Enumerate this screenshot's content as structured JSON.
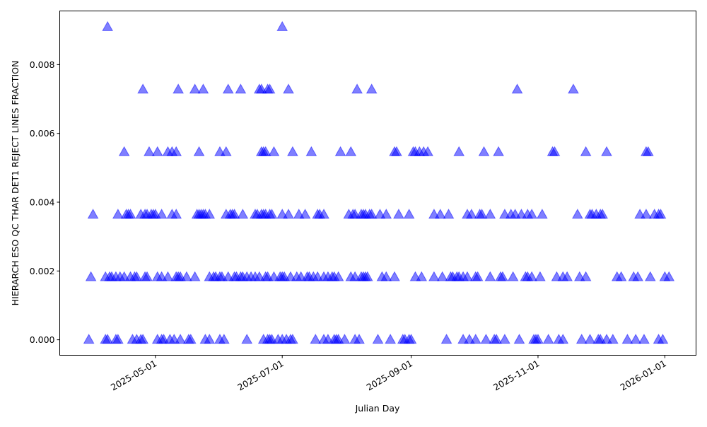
{
  "chart_data": {
    "type": "scatter",
    "title": "",
    "xlabel": "Julian Day",
    "ylabel": "HIERARCH ESO QC THAR DET1 REJECT LINES FRACTION",
    "x_unit": "days since 2025-05-01",
    "xlim": [
      -46,
      260
    ],
    "ylim": [
      -0.00045,
      0.00956
    ],
    "grid": false,
    "marker": "triangle-up",
    "color": "#0000ff",
    "alpha": 0.5,
    "x_ticks": [
      {
        "value": 0,
        "label": "2025-05-01"
      },
      {
        "value": 61,
        "label": "2025-07-01"
      },
      {
        "value": 123,
        "label": "2025-09-01"
      },
      {
        "value": 184,
        "label": "2025-11-01"
      },
      {
        "value": 245,
        "label": "2026-01-01"
      }
    ],
    "y_ticks": [
      {
        "value": 0.0,
        "label": "0.000"
      },
      {
        "value": 0.002,
        "label": "0.002"
      },
      {
        "value": 0.004,
        "label": "0.004"
      },
      {
        "value": 0.006,
        "label": "0.006"
      },
      {
        "value": 0.008,
        "label": "0.008"
      }
    ],
    "series": [
      {
        "y": 0.0,
        "x": [
          -32,
          -24,
          -23,
          -19,
          -18,
          -11,
          -9,
          -7,
          -6,
          1,
          3,
          4,
          7,
          9,
          12,
          16,
          17,
          24,
          26,
          31,
          33,
          44,
          52,
          54,
          55,
          56,
          59,
          61,
          63,
          65,
          66,
          77,
          81,
          83,
          86,
          87,
          88,
          91,
          96,
          98,
          107,
          113,
          119,
          120,
          122,
          123,
          140,
          148,
          151,
          154,
          159,
          163,
          164,
          168,
          175,
          182,
          183,
          184,
          189,
          194,
          196,
          205,
          209,
          213,
          214,
          217,
          220,
          227,
          231,
          235,
          242,
          244
        ]
      },
      {
        "y": 0.001818,
        "x": [
          -31,
          -24,
          -22,
          -21,
          -19,
          -17,
          -15,
          -12,
          -10,
          -9,
          -5,
          -4,
          1,
          3,
          6,
          10,
          11,
          12,
          15,
          19,
          26,
          28,
          29,
          31,
          32,
          35,
          38,
          39,
          41,
          42,
          44,
          46,
          48,
          50,
          53,
          54,
          57,
          60,
          61,
          62,
          65,
          68,
          70,
          73,
          74,
          76,
          78,
          81,
          83,
          85,
          86,
          88,
          94,
          96,
          99,
          100,
          101,
          102,
          109,
          111,
          115,
          125,
          128,
          134,
          138,
          142,
          143,
          145,
          146,
          148,
          150,
          154,
          155,
          161,
          166,
          167,
          172,
          178,
          179,
          181,
          185,
          193,
          196,
          198,
          204,
          207,
          222,
          224,
          230,
          232,
          238,
          245,
          247
        ]
      },
      {
        "y": 0.003636,
        "x": [
          -30,
          -18,
          -14,
          -13,
          -12,
          -7,
          -5,
          -4,
          -2,
          -1,
          0,
          3,
          8,
          10,
          20,
          21,
          22,
          23,
          24,
          26,
          34,
          36,
          37,
          38,
          42,
          48,
          49,
          51,
          52,
          53,
          55,
          56,
          61,
          64,
          69,
          72,
          78,
          79,
          81,
          93,
          95,
          96,
          99,
          100,
          101,
          103,
          104,
          108,
          111,
          117,
          122,
          134,
          137,
          141,
          150,
          152,
          156,
          157,
          161,
          168,
          171,
          173,
          176,
          179,
          181,
          186,
          203,
          209,
          210,
          212,
          214,
          215,
          233,
          236,
          240,
          242,
          243
        ]
      },
      {
        "y": 0.005455,
        "x": [
          -15,
          -3,
          1,
          6,
          8,
          10,
          21,
          31,
          34,
          51,
          52,
          53,
          57,
          66,
          75,
          89,
          94,
          115,
          116,
          124,
          125,
          127,
          129,
          131,
          146,
          158,
          165,
          191,
          192,
          207,
          217,
          236,
          237
        ]
      },
      {
        "y": 0.007273,
        "x": [
          -6,
          11,
          19,
          23,
          35,
          41,
          50,
          51,
          54,
          55,
          64,
          97,
          104,
          174,
          201
        ]
      },
      {
        "y": 0.009091,
        "x": [
          -23,
          61
        ]
      }
    ]
  }
}
